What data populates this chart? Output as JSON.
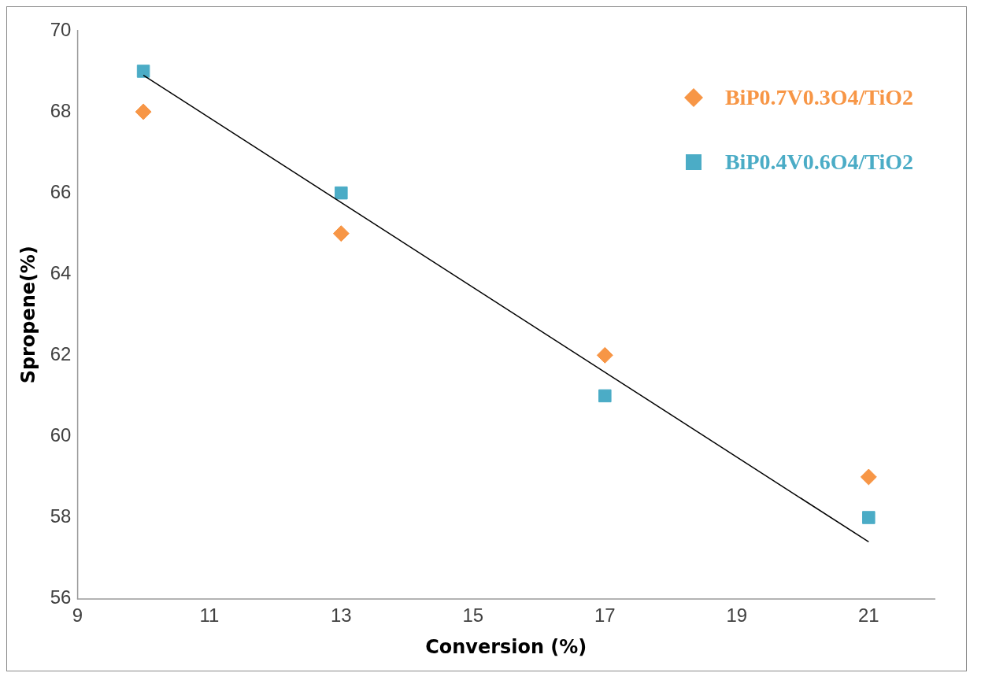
{
  "chart_data": {
    "type": "scatter",
    "xlabel": "Conversion (%)",
    "ylabel": "Spropene(%)",
    "xlim": [
      9,
      22
    ],
    "xticks": [
      9,
      11,
      13,
      15,
      17,
      19,
      21
    ],
    "ylim": [
      56,
      70
    ],
    "yticks": [
      56,
      58,
      60,
      62,
      64,
      66,
      68,
      70
    ],
    "grid": false,
    "legend": "top right",
    "series": [
      {
        "name": "BiP0.7V0.3O4/TiO2",
        "color": "#f79646",
        "marker": "diamond",
        "x": [
          10,
          13,
          17,
          21
        ],
        "values": [
          68,
          65,
          62,
          59
        ]
      },
      {
        "name": "BiP0.4V0.6O4/TiO2",
        "color": "#4bacc6",
        "marker": "square",
        "x": [
          10,
          13,
          17,
          21
        ],
        "values": [
          69,
          66,
          61,
          58
        ]
      },
      {
        "type": "line",
        "color": "#000000",
        "marker": "none",
        "x": [
          10,
          21
        ],
        "values": [
          68.9,
          57.4
        ]
      }
    ]
  }
}
